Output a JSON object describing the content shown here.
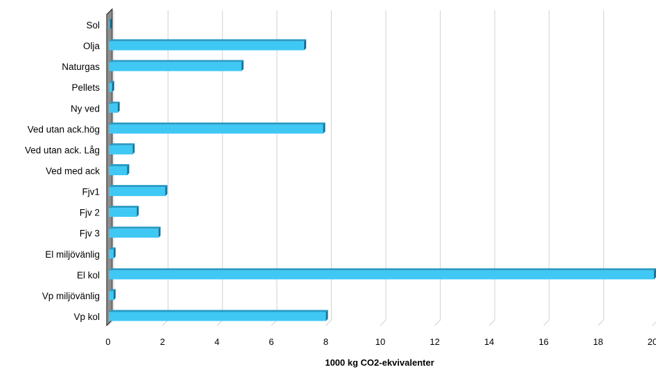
{
  "chart_data": {
    "type": "bar",
    "orientation": "horizontal",
    "title": "",
    "xlabel": "1000 kg CO2-ekvivalenter",
    "ylabel": "",
    "xlim": [
      0,
      20
    ],
    "x_ticks": [
      "0",
      "2",
      "4",
      "6",
      "8",
      "10",
      "12",
      "14",
      "16",
      "18",
      "20"
    ],
    "grid": "vertical",
    "legend": "none",
    "bar_color": "#3FC8F4",
    "categories": [
      "Sol",
      "Olja",
      "Naturgas",
      "Pellets",
      "Ny ved",
      "Ved utan ack.hög",
      "Ved utan ack. Låg",
      "Ved med ack",
      "Fjv1",
      "Fjv 2",
      "Fjv 3",
      "El miljövänlig",
      "El kol",
      "Vp miljövänlig",
      "Vp kol"
    ],
    "values": [
      0.05,
      7.2,
      4.9,
      0.15,
      0.35,
      7.9,
      0.9,
      0.7,
      2.1,
      1.05,
      1.85,
      0.2,
      20.05,
      0.2,
      8.0
    ]
  }
}
